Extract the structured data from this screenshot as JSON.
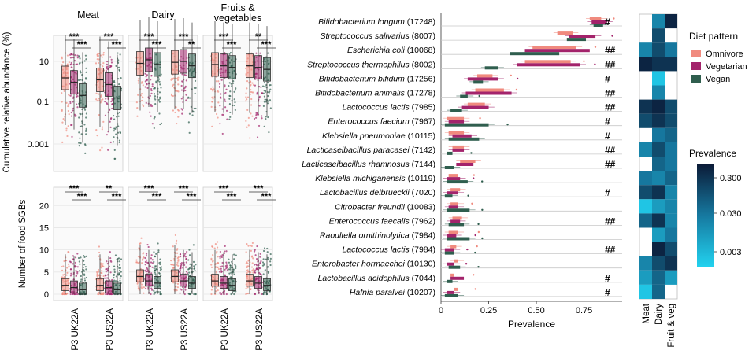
{
  "colors": {
    "omnivore": "#f08a7e",
    "vegetarian": "#a3236b",
    "vegan": "#2f5e4e",
    "heat_low": "#22d3f0",
    "heat_mid": "#1679a0",
    "heat_high": "#0b1a36"
  },
  "chart_data": [
    {
      "type": "box",
      "panel": "left-top",
      "facets": [
        "Meat",
        "Dairy",
        "Fruits & vegetables"
      ],
      "ylabel": "Cumulative relative abundance (%)",
      "yscale": "log",
      "yticks": [
        "10",
        "0.1",
        "0.001"
      ],
      "categories": [
        "P3 UK22A",
        "P3 US22A"
      ],
      "series_order": [
        "Omnivore",
        "Vegetarian",
        "Vegan"
      ],
      "medians": [
        [
          [
            1.5,
            0.9,
            0.2
          ],
          [
            1.2,
            0.7,
            0.15
          ]
        ],
        [
          [
            8,
            12,
            7
          ],
          [
            9,
            10,
            6
          ]
        ],
        [
          [
            7,
            6,
            5
          ],
          [
            6,
            5,
            4
          ]
        ]
      ],
      "significance_top": [
        "***",
        "***",
        "***",
        "***",
        "***",
        "**",
        "***",
        "**",
        "***",
        "**"
      ],
      "significance_bottom": [
        "***",
        "***",
        "***",
        "**",
        "***",
        "***"
      ]
    },
    {
      "type": "box",
      "panel": "left-bottom",
      "ylabel": "Number of food SGBs",
      "yticks": [
        0,
        5,
        10,
        15,
        20
      ],
      "ylim": [
        0,
        22
      ],
      "medians": [
        [
          [
            2,
            1.5,
            1
          ],
          [
            2,
            1.5,
            1
          ]
        ],
        [
          [
            4,
            3,
            2.5
          ],
          [
            4,
            3,
            2.5
          ]
        ],
        [
          [
            3,
            2.5,
            2
          ],
          [
            3,
            2.5,
            2
          ]
        ]
      ],
      "significance_top": [
        "***",
        "**",
        "***",
        "***",
        "***",
        "***"
      ],
      "significance_bottom": [
        "***",
        "***",
        "***",
        "***",
        "***",
        "***"
      ]
    },
    {
      "type": "bar",
      "panel": "middle",
      "xlabel": "Prevalence",
      "xticks": [
        "0",
        "0.25",
        "0.50",
        "0.75"
      ],
      "xlim": [
        0,
        0.95
      ],
      "legend_title": "Diet pattern",
      "legend": [
        "Omnivore",
        "Vegetarian",
        "Vegan"
      ],
      "categories": [
        {
          "name": "Bifidobacterium longum",
          "id": "(17248)",
          "mark": "#"
        },
        {
          "name": "Streptococcus salivarius",
          "id": "(8007)",
          "mark": ""
        },
        {
          "name": "Escherichia coli",
          "id": "(10068)",
          "mark": "##"
        },
        {
          "name": "Streptococcus thermophilus",
          "id": "(8002)",
          "mark": "##"
        },
        {
          "name": "Bifidobacterium bifidum",
          "id": "(17256)",
          "mark": "#"
        },
        {
          "name": "Bifidobacterium animalis",
          "id": "(17278)",
          "mark": "##"
        },
        {
          "name": "Lactococcus lactis",
          "id": "(7985)",
          "mark": "##"
        },
        {
          "name": "Enterococcus faecium",
          "id": "(7967)",
          "mark": "#"
        },
        {
          "name": "Klebsiella pneumoniae",
          "id": "(10115)",
          "mark": "#"
        },
        {
          "name": "Lacticaseibacillus paracasei",
          "id": "(7142)",
          "mark": "##"
        },
        {
          "name": "Lacticaseibacillus rhamnosus",
          "id": "(7144)",
          "mark": "##"
        },
        {
          "name": "Klebsiella michiganensis",
          "id": "(10119)",
          "mark": ""
        },
        {
          "name": "Lactobacillus delbrueckii",
          "id": "(7020)",
          "mark": "#"
        },
        {
          "name": "Citrobacter freundii",
          "id": "(10083)",
          "mark": ""
        },
        {
          "name": "Enterococcus faecalis",
          "id": "(7962)",
          "mark": "##"
        },
        {
          "name": "Raoultella ornithinolytica",
          "id": "(7984)",
          "mark": ""
        },
        {
          "name": "Lactococcus lactis",
          "id": "(7984)",
          "mark": "##"
        },
        {
          "name": "Enterobacter hormaechei",
          "id": "(10130)",
          "mark": ""
        },
        {
          "name": "Lactobacillus acidophilus",
          "id": "(7044)",
          "mark": "#"
        },
        {
          "name": "Hafnia paralvei",
          "id": "(10207)",
          "mark": "#"
        }
      ],
      "series": [
        {
          "name": "Omnivore",
          "lo": [
            0.78,
            0.61,
            0.48,
            0.44,
            0.19,
            0.18,
            0.14,
            0.03,
            0.04,
            0.06,
            0.1,
            0.04,
            0.05,
            0.05,
            0.06,
            0.04,
            0.05,
            0.07,
            0.05,
            0.07
          ],
          "hi": [
            0.84,
            0.69,
            0.71,
            0.68,
            0.27,
            0.33,
            0.23,
            0.12,
            0.12,
            0.12,
            0.18,
            0.09,
            0.1,
            0.09,
            0.11,
            0.09,
            0.08,
            0.09,
            0.07,
            0.09
          ]
        },
        {
          "name": "Vegetarian",
          "lo": [
            0.79,
            0.67,
            0.44,
            0.4,
            0.14,
            0.13,
            0.11,
            0.04,
            0.06,
            0.06,
            0.08,
            0.03,
            0.03,
            0.04,
            0.05,
            0.03,
            0.02,
            0.03,
            0.05,
            0.03
          ],
          "hi": [
            0.87,
            0.81,
            0.78,
            0.73,
            0.3,
            0.37,
            0.25,
            0.12,
            0.16,
            0.12,
            0.17,
            0.1,
            0.09,
            0.09,
            0.1,
            0.08,
            0.07,
            0.07,
            0.12,
            0.07
          ]
        },
        {
          "name": "Vegan",
          "lo": [
            0.8,
            0.66,
            0.36,
            0.23,
            0.17,
            0.1,
            0.05,
            0.02,
            0.04,
            0.03,
            0.02,
            0.03,
            0.02,
            0.03,
            0.04,
            0.03,
            0.02,
            0.04,
            0.03,
            0.02
          ],
          "hi": [
            0.85,
            0.76,
            0.62,
            0.3,
            0.22,
            0.14,
            0.11,
            0.25,
            0.2,
            0.06,
            0.07,
            0.14,
            0.06,
            0.15,
            0.12,
            0.15,
            0.07,
            0.1,
            0.06,
            0.09
          ]
        }
      ]
    },
    {
      "type": "heatmap",
      "panel": "right",
      "columns": [
        "Meat",
        "Dairy",
        "Fruit & veg"
      ],
      "legend_title": "Prevalence",
      "legend_ticks": [
        "0.300",
        "0.030",
        "0.003"
      ],
      "values": [
        [
          null,
          0.02,
          0.3
        ],
        [
          null,
          0.1,
          null
        ],
        [
          0.02,
          0.1,
          0.03
        ],
        [
          0.3,
          0.2,
          0.2
        ],
        [
          null,
          0.003,
          null
        ],
        [
          null,
          0.02,
          null
        ],
        [
          0.2,
          0.3,
          0.1
        ],
        [
          0.1,
          0.2,
          0.1
        ],
        [
          null,
          0.03,
          0.05
        ],
        [
          0.02,
          0.1,
          0.03
        ],
        [
          null,
          0.05,
          0.03
        ],
        [
          0.03,
          0.02,
          0.05
        ],
        [
          0.1,
          0.2,
          0.02
        ],
        [
          0.003,
          0.01,
          0.02
        ],
        [
          0.05,
          0.2,
          0.02
        ],
        [
          null,
          0.01,
          0.03
        ],
        [
          null,
          0.3,
          0.1
        ],
        [
          0.02,
          0.1,
          0.2
        ],
        [
          0.01,
          0.05,
          0.01
        ],
        [
          0.003,
          0.05,
          null
        ]
      ]
    }
  ]
}
